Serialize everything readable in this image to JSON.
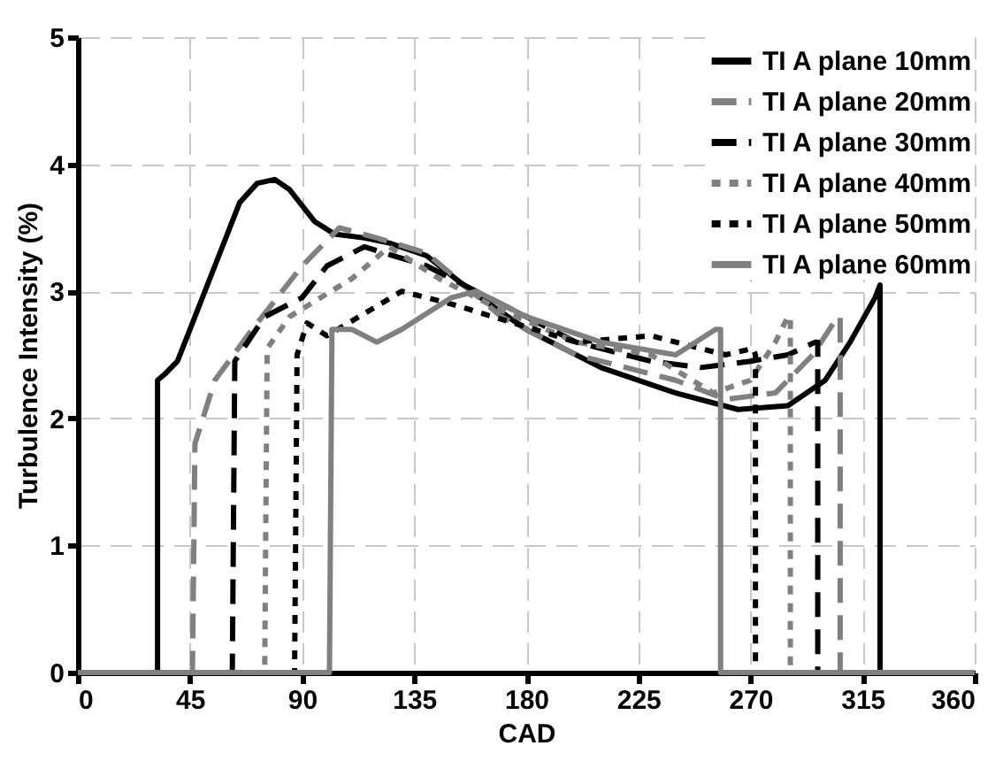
{
  "chart_data": {
    "type": "line",
    "xlabel": "CAD",
    "ylabel": "Turbulence Intensity (%)",
    "xlim": [
      0,
      360
    ],
    "xticks": [
      0,
      45,
      90,
      135,
      180,
      225,
      270,
      315,
      360
    ],
    "ylim": [
      0,
      5
    ],
    "yticks": [
      0,
      1,
      2,
      3,
      4,
      5
    ],
    "grid": true,
    "legend": "top right",
    "series": [
      {
        "name": "TI A plane 10mm",
        "color": "#000000",
        "line_style": "solid",
        "x": [
          0,
          32,
          32,
          35,
          40,
          45,
          55,
          65,
          72,
          79,
          85,
          95,
          103,
          115,
          125,
          140,
          158,
          180,
          210,
          240,
          265,
          285,
          300,
          310,
          320,
          322,
          322,
          360
        ],
        "values": [
          0,
          0,
          2.3,
          2.35,
          2.45,
          2.7,
          3.2,
          3.7,
          3.85,
          3.88,
          3.8,
          3.55,
          3.45,
          3.42,
          3.38,
          3.28,
          3.0,
          2.7,
          2.4,
          2.2,
          2.07,
          2.1,
          2.3,
          2.6,
          2.95,
          3.05,
          0,
          0
        ]
      },
      {
        "name": "TI A plane 20mm",
        "color": "#808080",
        "line_style": "dashed",
        "x": [
          0,
          46,
          47,
          55,
          70,
          90,
          105,
          120,
          140,
          170,
          200,
          240,
          260,
          280,
          295,
          305,
          306,
          306,
          360
        ],
        "values": [
          0,
          0,
          1.8,
          2.3,
          2.7,
          3.2,
          3.5,
          3.42,
          3.3,
          2.8,
          2.5,
          2.3,
          2.15,
          2.2,
          2.5,
          2.8,
          2.8,
          0,
          0
        ]
      },
      {
        "name": "TI A plane 30mm",
        "color": "#000000",
        "line_style": "dashed",
        "x": [
          0,
          62,
          63,
          75,
          90,
          100,
          115,
          140,
          170,
          200,
          230,
          250,
          270,
          285,
          296,
          297,
          297,
          360
        ],
        "values": [
          0,
          0,
          2.45,
          2.8,
          2.95,
          3.2,
          3.35,
          3.2,
          2.9,
          2.6,
          2.45,
          2.4,
          2.45,
          2.5,
          2.6,
          2.6,
          0,
          0
        ]
      },
      {
        "name": "TI A plane 40mm",
        "color": "#808080",
        "line_style": "dotted",
        "x": [
          0,
          75,
          76,
          85,
          110,
          125,
          145,
          170,
          200,
          230,
          255,
          270,
          280,
          285,
          286,
          286,
          360
        ],
        "values": [
          0,
          0,
          2.55,
          2.8,
          3.1,
          3.35,
          3.1,
          2.85,
          2.6,
          2.5,
          2.2,
          2.3,
          2.6,
          2.8,
          2.8,
          0,
          0
        ]
      },
      {
        "name": "TI A plane 50mm",
        "color": "#000000",
        "line_style": "dotted",
        "x": [
          0,
          87,
          88,
          92,
          100,
          130,
          150,
          200,
          230,
          260,
          271,
          272,
          272,
          360
        ],
        "values": [
          0,
          0,
          2.5,
          2.75,
          2.65,
          3.0,
          2.9,
          2.6,
          2.65,
          2.5,
          2.55,
          2.5,
          0,
          0
        ]
      },
      {
        "name": "TI A plane 60mm",
        "color": "#808080",
        "line_style": "solid",
        "x": [
          0,
          101,
          102,
          110,
          120,
          130,
          150,
          160,
          180,
          210,
          240,
          256,
          258,
          258,
          360
        ],
        "values": [
          0,
          0,
          2.7,
          2.7,
          2.6,
          2.7,
          2.95,
          3.0,
          2.8,
          2.6,
          2.5,
          2.7,
          2.7,
          0,
          0
        ]
      }
    ]
  }
}
